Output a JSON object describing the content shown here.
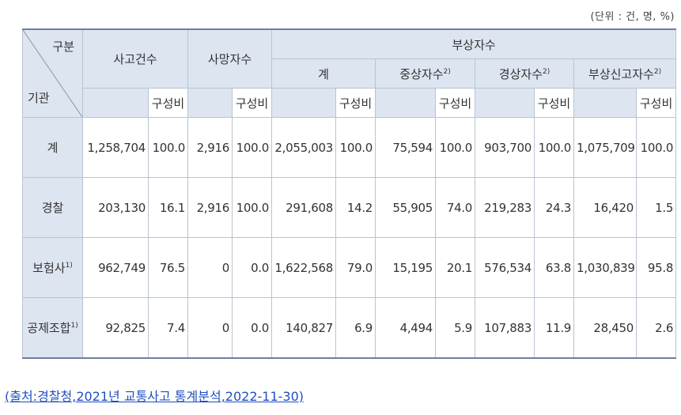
{
  "unit_label": "(단위 : 건, 명, %)",
  "header": {
    "corner_top": "구분",
    "corner_bottom": "기관",
    "accidents": "사고건수",
    "deaths": "사망자수",
    "injured": "부상자수",
    "total": "계",
    "serious": "중상자수",
    "minor": "경상자수",
    "reported": "부상신고자수",
    "ratio": "구성비",
    "sup2": "2)"
  },
  "rows": [
    {
      "label": "계",
      "sup": "",
      "acc": "1,258,704",
      "acc_r": "100.0",
      "death": "2,916",
      "death_r": "100.0",
      "inj": "2,055,003",
      "inj_r": "100.0",
      "ser": "75,594",
      "ser_r": "100.0",
      "min": "903,700",
      "min_r": "100.0",
      "rep": "1,075,709",
      "rep_r": "100.0"
    },
    {
      "label": "경찰",
      "sup": "",
      "acc": "203,130",
      "acc_r": "16.1",
      "death": "2,916",
      "death_r": "100.0",
      "inj": "291,608",
      "inj_r": "14.2",
      "ser": "55,905",
      "ser_r": "74.0",
      "min": "219,283",
      "min_r": "24.3",
      "rep": "16,420",
      "rep_r": "1.5"
    },
    {
      "label": "보험사",
      "sup": "1)",
      "acc": "962,749",
      "acc_r": "76.5",
      "death": "0",
      "death_r": "0.0",
      "inj": "1,622,568",
      "inj_r": "79.0",
      "ser": "15,195",
      "ser_r": "20.1",
      "min": "576,534",
      "min_r": "63.8",
      "rep": "1,030,839",
      "rep_r": "95.8"
    },
    {
      "label": "공제조합",
      "sup": "1)",
      "acc": "92,825",
      "acc_r": "7.4",
      "death": "0",
      "death_r": "0.0",
      "inj": "140,827",
      "inj_r": "6.9",
      "ser": "4,494",
      "ser_r": "5.9",
      "min": "107,883",
      "min_r": "11.9",
      "rep": "28,450",
      "rep_r": "2.6"
    }
  ],
  "source_link": "(출처:경찰청,2021년 교통사고 통계분석,2022-11-30)"
}
